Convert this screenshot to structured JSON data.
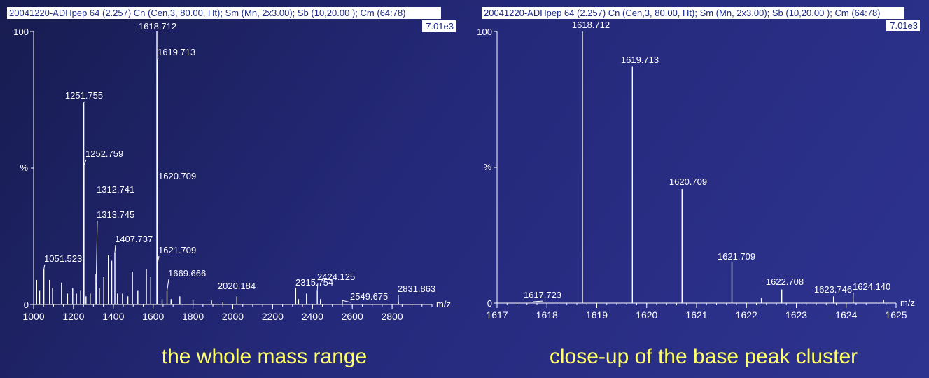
{
  "chart_data": [
    {
      "type": "bar",
      "header": "20041220-ADHpep  64 (2.257) Cn (Cen,3, 80.00, Ht); Sm (Mn, 2x3.00); Sb (10,20.00 ); Cm (64:78)",
      "intensity_scale": "7.01e3",
      "ylabel": "%",
      "xlabel": "m/z",
      "xlim": [
        1000,
        3000
      ],
      "ylim": [
        0,
        100
      ],
      "xticks": [
        1000,
        1200,
        1400,
        1600,
        1800,
        2000,
        2200,
        2400,
        2600,
        2800
      ],
      "yticks": [
        0,
        100
      ],
      "annotations": [
        {
          "label": "1618.712"
        },
        {
          "label": "1619.713"
        },
        {
          "label": "1251.755"
        },
        {
          "label": "1252.759"
        },
        {
          "label": "1620.709"
        },
        {
          "label": "1312.741"
        },
        {
          "label": "1313.745"
        },
        {
          "label": "1407.737"
        },
        {
          "label": "1621.709"
        },
        {
          "label": "1051.523"
        },
        {
          "label": "1669.666"
        },
        {
          "label": "2315.754"
        },
        {
          "label": "2424.125"
        },
        {
          "label": "2020.184"
        },
        {
          "label": "2549.675"
        },
        {
          "label": "2831.863"
        }
      ],
      "peaks": [
        {
          "mz": 1618.712,
          "intensity": 100
        },
        {
          "mz": 1619.713,
          "intensity": 89
        },
        {
          "mz": 1251.755,
          "intensity": 74
        },
        {
          "mz": 1252.759,
          "intensity": 51
        },
        {
          "mz": 1620.709,
          "intensity": 43
        },
        {
          "mz": 1312.741,
          "intensity": 11
        },
        {
          "mz": 1313.745,
          "intensity": 8
        },
        {
          "mz": 1407.737,
          "intensity": 19
        },
        {
          "mz": 1621.709,
          "intensity": 15
        },
        {
          "mz": 1051.523,
          "intensity": 13
        },
        {
          "mz": 1669.666,
          "intensity": 5
        },
        {
          "mz": 2315.754,
          "intensity": 6
        },
        {
          "mz": 2424.125,
          "intensity": 5
        },
        {
          "mz": 2020.184,
          "intensity": 3
        },
        {
          "mz": 2549.675,
          "intensity": 1.5
        },
        {
          "mz": 2831.863,
          "intensity": 1
        },
        {
          "mz": 1015,
          "intensity": 9
        },
        {
          "mz": 1030,
          "intensity": 5
        },
        {
          "mz": 1080,
          "intensity": 9
        },
        {
          "mz": 1095,
          "intensity": 6
        },
        {
          "mz": 1140,
          "intensity": 8
        },
        {
          "mz": 1170,
          "intensity": 4
        },
        {
          "mz": 1196,
          "intensity": 6
        },
        {
          "mz": 1215,
          "intensity": 4
        },
        {
          "mz": 1236,
          "intensity": 5
        },
        {
          "mz": 1263,
          "intensity": 3
        },
        {
          "mz": 1284,
          "intensity": 4
        },
        {
          "mz": 1330,
          "intensity": 6
        },
        {
          "mz": 1352,
          "intensity": 10
        },
        {
          "mz": 1375,
          "intensity": 18
        },
        {
          "mz": 1392,
          "intensity": 16
        },
        {
          "mz": 1421,
          "intensity": 4
        },
        {
          "mz": 1446,
          "intensity": 4
        },
        {
          "mz": 1473,
          "intensity": 3
        },
        {
          "mz": 1496,
          "intensity": 12
        },
        {
          "mz": 1523,
          "intensity": 5
        },
        {
          "mz": 1566,
          "intensity": 13
        },
        {
          "mz": 1588,
          "intensity": 10
        },
        {
          "mz": 1645,
          "intensity": 2
        },
        {
          "mz": 1690,
          "intensity": 2
        },
        {
          "mz": 1734,
          "intensity": 3
        },
        {
          "mz": 1800,
          "intensity": 1.5
        },
        {
          "mz": 1893,
          "intensity": 1.5
        },
        {
          "mz": 1950,
          "intensity": 1
        },
        {
          "mz": 2330,
          "intensity": 2
        },
        {
          "mz": 2370,
          "intensity": 4
        },
        {
          "mz": 2440,
          "intensity": 2
        }
      ]
    },
    {
      "type": "bar",
      "header": "20041220-ADHpep  64 (2.257) Cn (Cen,3, 80.00, Ht); Sm (Mn, 2x3.00); Sb (10,20.00 ); Cm (64:78)",
      "intensity_scale": "7.01e3",
      "ylabel": "%",
      "xlabel": "m/z",
      "xlim": [
        1617,
        1625
      ],
      "ylim": [
        0,
        100
      ],
      "xticks": [
        1617,
        1618,
        1619,
        1620,
        1621,
        1622,
        1623,
        1624,
        1625
      ],
      "yticks": [
        0,
        100
      ],
      "annotations": [
        {
          "label": "1618.712"
        },
        {
          "label": "1619.713"
        },
        {
          "label": "1620.709"
        },
        {
          "label": "1621.709"
        },
        {
          "label": "1622.708"
        },
        {
          "label": "1623.746"
        },
        {
          "label": "1624.140"
        },
        {
          "label": "1617.723"
        }
      ],
      "peaks": [
        {
          "mz": 1618.712,
          "intensity": 100
        },
        {
          "mz": 1619.713,
          "intensity": 87
        },
        {
          "mz": 1620.709,
          "intensity": 42
        },
        {
          "mz": 1621.709,
          "intensity": 15
        },
        {
          "mz": 1622.708,
          "intensity": 5
        },
        {
          "mz": 1623.746,
          "intensity": 2.5
        },
        {
          "mz": 1624.14,
          "intensity": 1
        },
        {
          "mz": 1617.723,
          "intensity": 0.5
        },
        {
          "mz": 1622.3,
          "intensity": 1.8
        },
        {
          "mz": 1624.75,
          "intensity": 1.2
        }
      ]
    }
  ],
  "captions": {
    "left": "the whole mass range",
    "right": "close-up of the base peak cluster"
  }
}
